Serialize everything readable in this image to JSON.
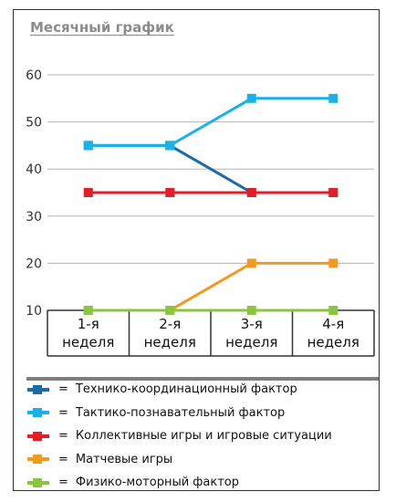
{
  "title": "Месячный график",
  "chart_data": {
    "type": "line",
    "title": "Месячный график",
    "categories": [
      "1-я неделя",
      "2-я неделя",
      "3-я неделя",
      "4-я неделя"
    ],
    "category_lines": [
      [
        "1-я",
        "неделя"
      ],
      [
        "2-я",
        "неделя"
      ],
      [
        "3-я",
        "неделя"
      ],
      [
        "4-я",
        "неделя"
      ]
    ],
    "ylim": [
      10,
      60
    ],
    "yticks": [
      10,
      20,
      30,
      40,
      50,
      60
    ],
    "grid": true,
    "legend_position": "bottom",
    "series": [
      {
        "name": "Технико-координационный фактор",
        "color": "#1b6aa9",
        "values": [
          45,
          45,
          35,
          35
        ]
      },
      {
        "name": "Тактико-познавательный фактор",
        "color": "#18b2e8",
        "values": [
          45,
          45,
          55,
          55
        ]
      },
      {
        "name": "Коллективные игры и игровые ситуации",
        "color": "#e31e24",
        "values": [
          35,
          35,
          35,
          35
        ]
      },
      {
        "name": "Матчевые игры",
        "color": "#f39a1e",
        "values": [
          10,
          10,
          20,
          20
        ]
      },
      {
        "name": "Физико-моторный фактор",
        "color": "#8bc53f",
        "values": [
          10,
          10,
          10,
          10
        ]
      }
    ]
  },
  "legend": {
    "equals": "="
  }
}
